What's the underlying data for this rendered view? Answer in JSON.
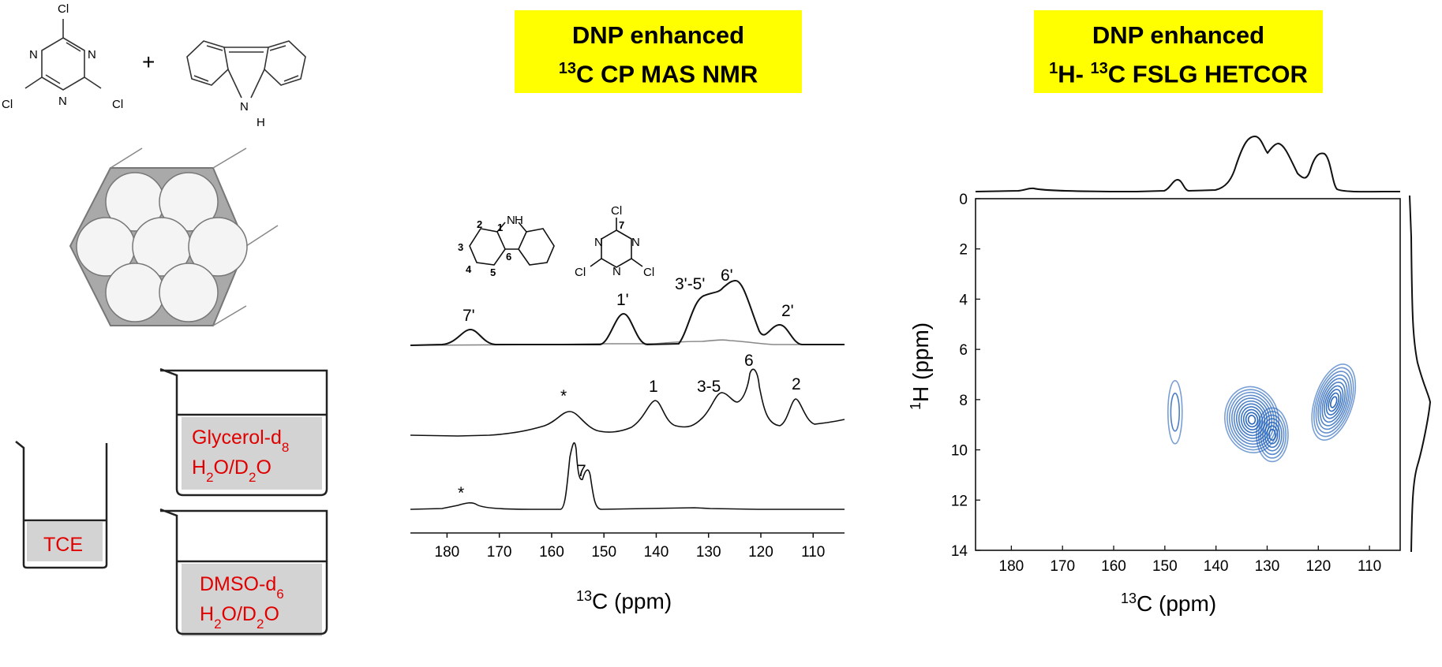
{
  "titles": {
    "cp_line1": "DNP enhanced",
    "cp_line2_sup": "13",
    "cp_line2_rest": "C CP MAS NMR",
    "het_line1": "DNP enhanced",
    "het_line2_sup1": "1",
    "het_line2_mid": "H- ",
    "het_line2_sup2": "13",
    "het_line2_rest": "C FSLG HETCOR"
  },
  "reactants": {
    "plus": "+",
    "cl": "Cl",
    "n": "N",
    "h": "H"
  },
  "solvents": {
    "tce": "TCE",
    "glycerol_name": "Glycerol-d",
    "glycerol_sub": "8",
    "water_h": "H",
    "water_sub1": "2",
    "water_mid": "O/D",
    "water_sub2": "2",
    "water_end": "O",
    "dmso_name": "DMSO-d",
    "dmso_sub": "6",
    "label_color": "#e00000"
  },
  "cp_spectrum": {
    "molecule_labels": {
      "n": "N",
      "h": "H",
      "cl": "Cl",
      "numbers": [
        "1",
        "2",
        "3",
        "4",
        "5",
        "6",
        "7"
      ]
    },
    "peak_labels": {
      "top": [
        "7'",
        "1'",
        "3'-5'",
        "6'",
        "2'"
      ],
      "middle": [
        "*",
        "1",
        "3-5",
        "6",
        "2"
      ],
      "bottom": [
        "7",
        "*"
      ]
    },
    "x_axis": {
      "ticks": [
        "180",
        "170",
        "160",
        "150",
        "140",
        "130",
        "120",
        "110"
      ],
      "title_sup": "13",
      "title_rest": "C (ppm)"
    }
  },
  "chart_data": {
    "type": "heatmap",
    "title": "",
    "x_axis": {
      "label": "13C (ppm)",
      "range": [
        187,
        104
      ],
      "ticks": [
        180,
        170,
        160,
        150,
        140,
        130,
        120,
        110
      ]
    },
    "y_axis": {
      "label": "1H (ppm)",
      "range": [
        0,
        14
      ],
      "ticks": [
        0,
        2,
        4,
        6,
        8,
        10,
        12,
        14
      ]
    },
    "contour_color": "#1f5fb8",
    "cross_peaks": [
      {
        "c13": 148,
        "h1": 8.5
      },
      {
        "c13": 133,
        "h1": 8.8
      },
      {
        "c13": 129,
        "h1": 9.4
      },
      {
        "c13": 117,
        "h1": 8.1
      }
    ],
    "projection_13c_peaks": [
      148,
      133,
      129,
      117
    ],
    "projection_1h_peak": 8.7
  }
}
